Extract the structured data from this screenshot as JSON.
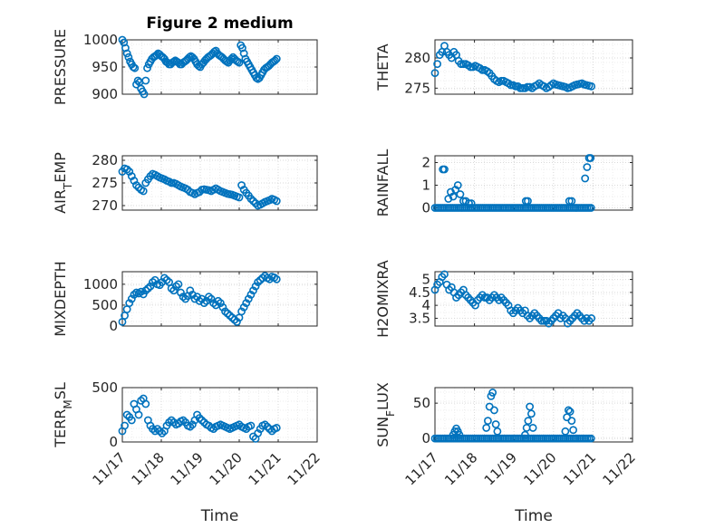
{
  "colors": {
    "marker": "#0072BD",
    "axis": "#262626",
    "grid": "#d9d9d9"
  },
  "chart_data": [
    {
      "type": "scatter",
      "title": "Figure 2 medium",
      "ylabel": "PRESSURE",
      "ylim": [
        900,
        1000
      ],
      "yticks": [
        "900",
        "950",
        "1000"
      ],
      "xlim": [
        0,
        5
      ],
      "grid": true,
      "x": [
        0.0,
        0.04,
        0.08,
        0.12,
        0.16,
        0.2,
        0.24,
        0.28,
        0.32,
        0.36,
        0.4,
        0.44,
        0.48,
        0.52,
        0.56,
        0.6,
        0.64,
        0.68,
        0.72,
        0.76,
        0.8,
        0.84,
        0.88,
        0.92,
        0.96,
        1.0,
        1.04,
        1.08,
        1.12,
        1.16,
        1.2,
        1.24,
        1.28,
        1.32,
        1.36,
        1.4,
        1.44,
        1.48,
        1.52,
        1.56,
        1.6,
        1.64,
        1.68,
        1.72,
        1.76,
        1.8,
        1.84,
        1.88,
        1.92,
        1.96,
        2.0,
        2.04,
        2.08,
        2.12,
        2.16,
        2.2,
        2.24,
        2.28,
        2.32,
        2.36,
        2.4,
        2.44,
        2.48,
        2.52,
        2.56,
        2.6,
        2.64,
        2.68,
        2.72,
        2.76,
        2.8,
        2.84,
        2.88,
        2.92,
        2.96,
        3.0,
        3.04,
        3.08,
        3.12,
        3.16,
        3.2,
        3.24,
        3.28,
        3.32,
        3.36,
        3.4,
        3.44,
        3.48,
        3.52,
        3.56,
        3.6,
        3.64,
        3.68,
        3.72,
        3.76,
        3.8,
        3.84,
        3.88,
        3.92,
        3.96
      ],
      "y": [
        1000,
        995,
        985,
        975,
        968,
        960,
        955,
        950,
        948,
        918,
        925,
        922,
        910,
        905,
        900,
        925,
        948,
        955,
        960,
        965,
        968,
        970,
        972,
        975,
        973,
        970,
        968,
        965,
        960,
        958,
        955,
        955,
        958,
        960,
        962,
        960,
        958,
        955,
        955,
        958,
        960,
        962,
        965,
        968,
        970,
        968,
        965,
        960,
        955,
        952,
        950,
        955,
        958,
        962,
        965,
        968,
        970,
        972,
        975,
        978,
        980,
        975,
        972,
        970,
        968,
        965,
        962,
        960,
        958,
        962,
        965,
        968,
        965,
        962,
        960,
        958,
        990,
        985,
        975,
        965,
        960,
        955,
        950,
        945,
        940,
        935,
        930,
        928,
        930,
        935,
        940,
        945,
        948,
        950,
        952,
        955,
        958,
        960,
        962,
        965
      ]
    },
    {
      "type": "scatter",
      "ylabel": "THETA",
      "ylim": [
        274,
        283
      ],
      "yticks": [
        "275",
        "280"
      ],
      "xlim": [
        0,
        5
      ],
      "grid": true,
      "x": [
        0.0,
        0.06,
        0.12,
        0.18,
        0.24,
        0.3,
        0.36,
        0.42,
        0.48,
        0.54,
        0.6,
        0.66,
        0.72,
        0.78,
        0.84,
        0.9,
        0.96,
        1.02,
        1.08,
        1.14,
        1.2,
        1.26,
        1.32,
        1.38,
        1.44,
        1.5,
        1.56,
        1.62,
        1.68,
        1.74,
        1.8,
        1.86,
        1.92,
        1.98,
        2.04,
        2.1,
        2.16,
        2.22,
        2.28,
        2.34,
        2.4,
        2.46,
        2.52,
        2.58,
        2.64,
        2.7,
        2.76,
        2.82,
        2.88,
        2.94,
        3.0,
        3.06,
        3.12,
        3.18,
        3.24,
        3.3,
        3.36,
        3.42,
        3.48,
        3.54,
        3.6,
        3.66,
        3.72,
        3.78,
        3.84,
        3.9,
        3.96
      ],
      "y": [
        277.5,
        279,
        280.5,
        281,
        282,
        281,
        280.5,
        280,
        281,
        280.5,
        279.5,
        279,
        279,
        279,
        278.8,
        278.5,
        278.5,
        278.7,
        278.5,
        278.3,
        278,
        278,
        277.8,
        277.5,
        277,
        276.5,
        276.2,
        276,
        276.2,
        276.2,
        276,
        275.8,
        275.5,
        275.5,
        275.3,
        275.3,
        275,
        275,
        275,
        275.2,
        275.2,
        275,
        275.3,
        275.5,
        275.8,
        275.5,
        275.3,
        275,
        275.2,
        275.5,
        275.8,
        275.6,
        275.5,
        275.4,
        275.3,
        275.2,
        275,
        275.1,
        275.3,
        275.5,
        275.6,
        275.7,
        275.8,
        275.6,
        275.5,
        275.4,
        275.3
      ]
    },
    {
      "type": "scatter",
      "ylabel": "AIR_TEMP",
      "ylim": [
        269,
        281
      ],
      "yticks": [
        "270",
        "275",
        "280"
      ],
      "xlim": [
        0,
        5
      ],
      "grid": true,
      "x": [
        0.0,
        0.06,
        0.12,
        0.18,
        0.24,
        0.3,
        0.36,
        0.42,
        0.48,
        0.54,
        0.6,
        0.66,
        0.72,
        0.78,
        0.84,
        0.9,
        0.96,
        1.02,
        1.08,
        1.14,
        1.2,
        1.26,
        1.32,
        1.38,
        1.44,
        1.5,
        1.56,
        1.62,
        1.68,
        1.74,
        1.8,
        1.86,
        1.92,
        1.98,
        2.04,
        2.1,
        2.16,
        2.22,
        2.28,
        2.34,
        2.4,
        2.46,
        2.52,
        2.58,
        2.64,
        2.7,
        2.76,
        2.82,
        2.88,
        2.94,
        3.0,
        3.06,
        3.12,
        3.18,
        3.24,
        3.3,
        3.36,
        3.42,
        3.48,
        3.54,
        3.6,
        3.66,
        3.72,
        3.78,
        3.84,
        3.9,
        3.96
      ],
      "y": [
        277.5,
        278.2,
        278,
        277.5,
        276.5,
        275.5,
        274.5,
        274,
        273.5,
        273.2,
        275,
        275.8,
        276.5,
        277,
        276.8,
        276.5,
        276.2,
        276,
        275.8,
        275.5,
        275.3,
        275,
        275,
        274.8,
        274.5,
        274.2,
        274,
        273.8,
        273.5,
        273,
        272.8,
        272.5,
        272.8,
        273,
        273.5,
        273.6,
        273.5,
        273.4,
        273.2,
        273.5,
        273.8,
        273.5,
        273.2,
        273,
        272.8,
        272.6,
        272.5,
        272.4,
        272.2,
        272,
        271.8,
        274.5,
        273.5,
        272.8,
        272.2,
        271.5,
        271,
        270.5,
        270,
        270.2,
        270.5,
        270.8,
        271,
        271.2,
        271.5,
        271.3,
        271
      ]
    },
    {
      "type": "scatter",
      "ylabel": "RAINFALL",
      "ylim": [
        -0.1,
        2.3
      ],
      "yticks": [
        "0",
        "1",
        "2"
      ],
      "xlim": [
        0,
        5
      ],
      "grid": true,
      "x": [
        0.0,
        0.05,
        0.1,
        0.15,
        0.2,
        0.25,
        0.3,
        0.35,
        0.4,
        0.45,
        0.5,
        0.55,
        0.6,
        0.65,
        0.7,
        0.75,
        0.8,
        0.85,
        0.9,
        0.95,
        1.0,
        1.05,
        1.1,
        1.15,
        1.2,
        1.25,
        1.3,
        1.35,
        1.4,
        1.45,
        1.5,
        1.55,
        1.6,
        1.65,
        1.7,
        1.75,
        1.8,
        1.85,
        1.9,
        1.95,
        2.0,
        2.05,
        2.1,
        2.15,
        2.2,
        2.25,
        2.3,
        2.35,
        2.4,
        2.45,
        2.5,
        2.55,
        2.6,
        2.65,
        2.7,
        2.75,
        2.8,
        2.85,
        2.9,
        2.95,
        3.0,
        3.05,
        3.1,
        3.15,
        3.2,
        3.25,
        3.3,
        3.35,
        3.4,
        3.45,
        3.5,
        3.55,
        3.6,
        3.65,
        3.7,
        3.75,
        3.8,
        3.85,
        3.9,
        3.95,
        0.2,
        0.24,
        0.34,
        0.4,
        0.46,
        0.52,
        0.58,
        0.64,
        0.72,
        0.78,
        0.86,
        0.92,
        2.3,
        2.35,
        3.4,
        3.46,
        3.8,
        3.85,
        3.9,
        3.94
      ],
      "y": [
        0,
        0,
        0,
        0,
        0,
        0,
        0,
        0,
        0,
        0,
        0,
        0,
        0,
        0,
        0,
        0,
        0,
        0,
        0,
        0,
        0,
        0,
        0,
        0,
        0,
        0,
        0,
        0,
        0,
        0,
        0,
        0,
        0,
        0,
        0,
        0,
        0,
        0,
        0,
        0,
        0,
        0,
        0,
        0,
        0,
        0,
        0,
        0,
        0,
        0,
        0,
        0,
        0,
        0,
        0,
        0,
        0,
        0,
        0,
        0,
        0,
        0,
        0,
        0,
        0,
        0,
        0,
        0,
        0,
        0,
        0,
        0,
        0,
        0,
        0,
        0,
        0,
        0,
        0,
        0,
        1.7,
        1.7,
        0.4,
        0.7,
        0.5,
        0.8,
        1.0,
        0.6,
        0.3,
        0.3,
        0.2,
        0.2,
        0.3,
        0.3,
        0.3,
        0.3,
        1.3,
        1.8,
        2.2,
        2.2
      ]
    },
    {
      "type": "scatter",
      "ylabel": "MIXDEPTH",
      "ylim": [
        0,
        1300
      ],
      "yticks": [
        "0",
        "500",
        "1000"
      ],
      "xlim": [
        0,
        5
      ],
      "grid": true,
      "x": [
        0.0,
        0.06,
        0.12,
        0.18,
        0.24,
        0.3,
        0.36,
        0.42,
        0.48,
        0.54,
        0.6,
        0.66,
        0.72,
        0.78,
        0.84,
        0.9,
        0.96,
        1.02,
        1.08,
        1.14,
        1.2,
        1.26,
        1.32,
        1.38,
        1.44,
        1.5,
        1.56,
        1.62,
        1.68,
        1.74,
        1.8,
        1.86,
        1.92,
        1.98,
        2.04,
        2.1,
        2.16,
        2.22,
        2.28,
        2.34,
        2.4,
        2.46,
        2.52,
        2.58,
        2.64,
        2.7,
        2.76,
        2.82,
        2.88,
        2.94,
        3.0,
        3.06,
        3.12,
        3.18,
        3.24,
        3.3,
        3.36,
        3.42,
        3.48,
        3.54,
        3.6,
        3.66,
        3.72,
        3.78,
        3.84,
        3.9,
        3.96
      ],
      "y": [
        100,
        250,
        400,
        550,
        650,
        750,
        800,
        780,
        820,
        760,
        850,
        900,
        950,
        1050,
        1100,
        1000,
        980,
        1050,
        1150,
        1100,
        1050,
        900,
        850,
        950,
        1000,
        800,
        700,
        650,
        720,
        850,
        750,
        650,
        700,
        600,
        650,
        550,
        600,
        700,
        650,
        550,
        500,
        600,
        550,
        450,
        350,
        300,
        250,
        200,
        150,
        100,
        200,
        350,
        450,
        550,
        650,
        750,
        850,
        950,
        1050,
        1100,
        1150,
        1200,
        1150,
        1120,
        1180,
        1160,
        1120
      ]
    },
    {
      "type": "scatter",
      "ylabel": "H2OMIXRA",
      "ylim": [
        3.2,
        5.3
      ],
      "yticks": [
        "3.5",
        "4",
        "4.5",
        "5"
      ],
      "xlim": [
        0,
        5
      ],
      "grid": true,
      "x": [
        0.0,
        0.06,
        0.12,
        0.18,
        0.24,
        0.3,
        0.36,
        0.42,
        0.48,
        0.54,
        0.6,
        0.66,
        0.72,
        0.78,
        0.84,
        0.9,
        0.96,
        1.02,
        1.08,
        1.14,
        1.2,
        1.26,
        1.32,
        1.38,
        1.44,
        1.5,
        1.56,
        1.62,
        1.68,
        1.74,
        1.8,
        1.86,
        1.92,
        1.98,
        2.04,
        2.1,
        2.16,
        2.22,
        2.28,
        2.34,
        2.4,
        2.46,
        2.52,
        2.58,
        2.64,
        2.7,
        2.76,
        2.82,
        2.88,
        2.94,
        3.0,
        3.06,
        3.12,
        3.18,
        3.24,
        3.3,
        3.36,
        3.42,
        3.48,
        3.54,
        3.6,
        3.66,
        3.72,
        3.78,
        3.84,
        3.9,
        3.96
      ],
      "y": [
        4.6,
        4.8,
        4.9,
        5.1,
        5.2,
        4.8,
        4.6,
        4.7,
        4.5,
        4.3,
        4.4,
        4.5,
        4.6,
        4.4,
        4.3,
        4.2,
        4.1,
        4.0,
        4.2,
        4.3,
        4.4,
        4.3,
        4.3,
        4.2,
        4.3,
        4.4,
        4.3,
        4.2,
        4.3,
        4.2,
        4.1,
        4.0,
        3.8,
        3.7,
        3.8,
        3.9,
        3.8,
        3.7,
        3.8,
        3.6,
        3.5,
        3.6,
        3.7,
        3.6,
        3.5,
        3.4,
        3.4,
        3.4,
        3.3,
        3.4,
        3.5,
        3.6,
        3.7,
        3.5,
        3.6,
        3.5,
        3.3,
        3.4,
        3.5,
        3.6,
        3.7,
        3.6,
        3.5,
        3.4,
        3.5,
        3.4,
        3.5
      ]
    },
    {
      "type": "scatter",
      "ylabel": "TERR_MSL",
      "ylim": [
        0,
        500
      ],
      "yticks": [
        "0",
        "500"
      ],
      "xlim": [
        0,
        5
      ],
      "grid": true,
      "xticks": [
        "11/17",
        "11/18",
        "11/19",
        "11/20",
        "11/21",
        "11/22"
      ],
      "xlabel": "Time",
      "x": [
        0.0,
        0.06,
        0.12,
        0.18,
        0.24,
        0.3,
        0.36,
        0.42,
        0.48,
        0.54,
        0.6,
        0.66,
        0.72,
        0.78,
        0.84,
        0.9,
        0.96,
        1.02,
        1.08,
        1.14,
        1.2,
        1.26,
        1.32,
        1.38,
        1.44,
        1.5,
        1.56,
        1.62,
        1.68,
        1.74,
        1.8,
        1.86,
        1.92,
        1.98,
        2.04,
        2.1,
        2.16,
        2.22,
        2.28,
        2.34,
        2.4,
        2.46,
        2.52,
        2.58,
        2.64,
        2.7,
        2.76,
        2.82,
        2.88,
        2.94,
        3.0,
        3.06,
        3.12,
        3.18,
        3.24,
        3.3,
        3.36,
        3.42,
        3.48,
        3.54,
        3.6,
        3.66,
        3.72,
        3.78,
        3.84,
        3.9,
        3.96
      ],
      "y": [
        100,
        150,
        250,
        230,
        200,
        350,
        300,
        250,
        380,
        400,
        350,
        200,
        150,
        120,
        100,
        120,
        100,
        80,
        100,
        150,
        180,
        200,
        180,
        160,
        170,
        190,
        200,
        180,
        150,
        140,
        160,
        200,
        250,
        220,
        200,
        180,
        160,
        150,
        130,
        120,
        140,
        150,
        160,
        150,
        140,
        130,
        120,
        130,
        140,
        150,
        160,
        140,
        130,
        120,
        140,
        150,
        50,
        30,
        80,
        120,
        150,
        160,
        140,
        120,
        100,
        120,
        130
      ]
    },
    {
      "type": "scatter",
      "ylabel": "SUN_FLUX",
      "ylim": [
        -5,
        72
      ],
      "yticks": [
        "0",
        "50"
      ],
      "xlim": [
        0,
        5
      ],
      "grid": true,
      "xticks": [
        "11/17",
        "11/18",
        "11/19",
        "11/20",
        "11/21",
        "11/22"
      ],
      "xlabel": "Time",
      "x": [
        0.0,
        0.05,
        0.1,
        0.15,
        0.2,
        0.25,
        0.3,
        0.35,
        0.4,
        0.45,
        0.5,
        0.55,
        0.6,
        0.65,
        0.7,
        0.75,
        0.8,
        0.85,
        0.9,
        0.95,
        1.0,
        1.05,
        1.1,
        1.15,
        1.2,
        1.25,
        1.3,
        1.35,
        1.4,
        1.45,
        1.5,
        1.55,
        1.6,
        1.65,
        1.7,
        1.75,
        1.8,
        1.85,
        1.9,
        1.95,
        2.0,
        2.05,
        2.1,
        2.15,
        2.2,
        2.25,
        2.3,
        2.35,
        2.4,
        2.45,
        2.5,
        2.55,
        2.6,
        2.65,
        2.7,
        2.75,
        2.8,
        2.85,
        2.9,
        2.95,
        3.0,
        3.05,
        3.1,
        3.15,
        3.2,
        3.25,
        3.3,
        3.35,
        3.4,
        3.45,
        3.5,
        3.55,
        3.6,
        3.65,
        3.7,
        3.75,
        3.8,
        3.85,
        3.9,
        3.95,
        0.46,
        0.5,
        0.54,
        0.58,
        0.62,
        1.3,
        1.34,
        1.38,
        1.42,
        1.46,
        1.5,
        1.54,
        1.58,
        2.28,
        2.32,
        2.36,
        2.4,
        2.44,
        2.48,
        3.3,
        3.34,
        3.38,
        3.42,
        3.46,
        3.5
      ],
      "y": [
        0,
        0,
        0,
        0,
        0,
        0,
        0,
        0,
        0,
        0,
        0,
        0,
        0,
        0,
        0,
        0,
        0,
        0,
        0,
        0,
        0,
        0,
        0,
        0,
        0,
        0,
        0,
        0,
        0,
        0,
        0,
        0,
        0,
        0,
        0,
        0,
        0,
        0,
        0,
        0,
        0,
        0,
        0,
        0,
        0,
        0,
        0,
        0,
        0,
        0,
        0,
        0,
        0,
        0,
        0,
        0,
        0,
        0,
        0,
        0,
        0,
        0,
        0,
        0,
        0,
        0,
        0,
        0,
        0,
        0,
        0,
        0,
        0,
        0,
        0,
        0,
        0,
        0,
        0,
        0,
        5,
        10,
        14,
        10,
        5,
        15,
        25,
        45,
        60,
        65,
        40,
        20,
        10,
        5,
        15,
        25,
        45,
        35,
        15,
        10,
        30,
        40,
        38,
        25,
        12
      ]
    }
  ]
}
